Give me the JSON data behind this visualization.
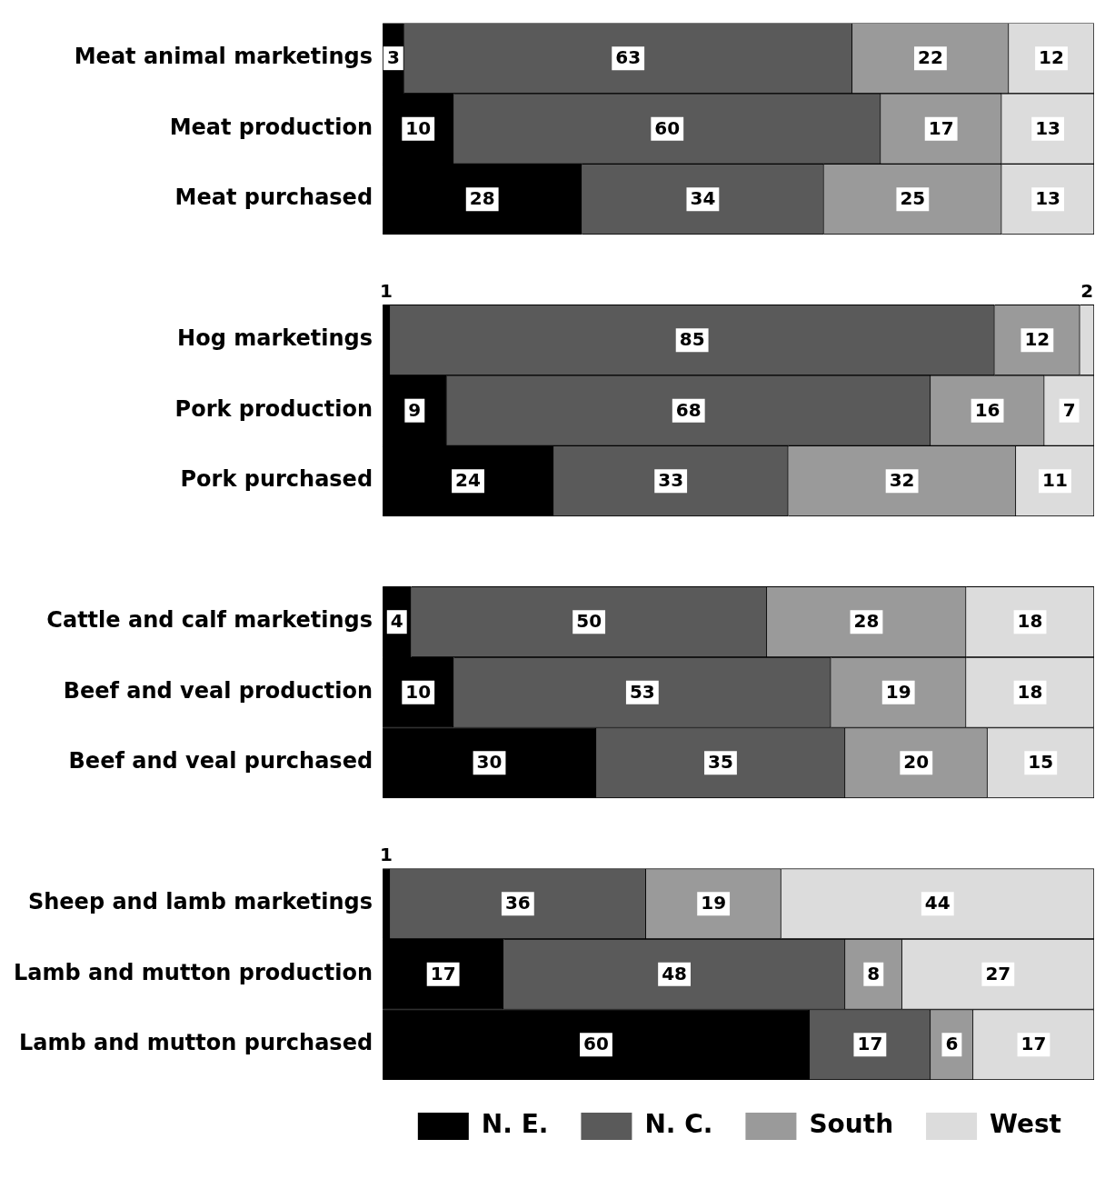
{
  "chart_data": {
    "type": "bar",
    "orientation": "horizontal",
    "stacked": true,
    "data_labels": true,
    "tick_labels": "y",
    "legend": "bottom",
    "categories": [
      "Meat animal marketings",
      "Meat production",
      "Meat purchased",
      null,
      "Hog marketings",
      "Pork production",
      "Pork purchased",
      null,
      "Cattle and calf marketings",
      "Beef and veal production",
      "Beef and veal purchased",
      null,
      "Sheep and lamb marketings",
      "Lamb and mutton production",
      "Lamb and mutton purchased"
    ],
    "series": [
      {
        "name": "N. E.",
        "color": "#000000",
        "values": [
          3,
          10,
          28,
          null,
          1,
          9,
          24,
          null,
          4,
          10,
          30,
          null,
          1,
          17,
          60
        ]
      },
      {
        "name": "N. C.",
        "color": "#5a5a5a",
        "values": [
          63,
          60,
          34,
          null,
          85,
          68,
          33,
          null,
          50,
          53,
          35,
          null,
          36,
          48,
          17
        ]
      },
      {
        "name": "South",
        "color": "#9a9a9a",
        "values": [
          22,
          17,
          25,
          null,
          12,
          16,
          32,
          null,
          28,
          19,
          20,
          null,
          19,
          8,
          6
        ]
      },
      {
        "name": "West",
        "color": "#dcdcdc",
        "values": [
          12,
          13,
          13,
          null,
          2,
          7,
          11,
          null,
          18,
          18,
          15,
          null,
          44,
          27,
          17
        ]
      }
    ]
  }
}
